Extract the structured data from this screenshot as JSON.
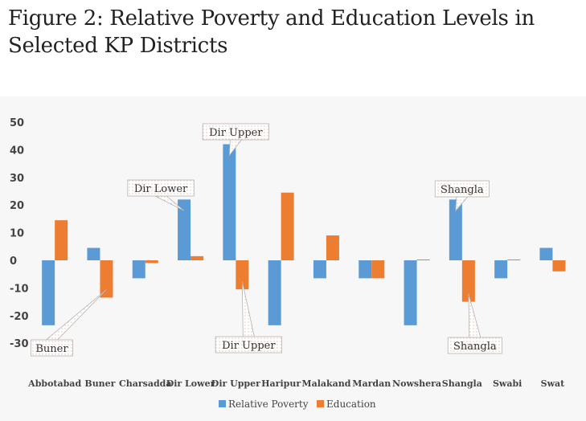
{
  "title": "Figure 2: Relative Poverty and Education Levels in Selected KP Districts",
  "colors": {
    "poverty": "#5b9bd5",
    "education": "#ed7d31",
    "background": "#f7f7f7"
  },
  "chart_data": {
    "type": "bar",
    "title": "",
    "xlabel": "",
    "ylabel": "",
    "ylim": [
      -30,
      50
    ],
    "yticks": [
      50,
      40,
      30,
      20,
      10,
      0,
      -10,
      -20,
      -30
    ],
    "grid": false,
    "legend_position": "bottom",
    "categories": [
      "Abbotabad",
      "Buner",
      "Charsadda",
      "Dir Lower",
      "Dir Upper",
      "Haripur",
      "Malakand",
      "Mardan",
      "Nowshera",
      "Shangla",
      "Swabi",
      "Swat"
    ],
    "series": [
      {
        "name": "Relative Poverty",
        "values": [
          -23.5,
          4.5,
          -6.5,
          22,
          42,
          -23.5,
          -6.5,
          -6.5,
          -23.5,
          22,
          -6.5,
          4.5
        ]
      },
      {
        "name": "Education",
        "values": [
          14.5,
          -13.5,
          -1,
          1.5,
          -10.5,
          24.5,
          9,
          -6.5,
          0.3,
          -15,
          0.3,
          -4
        ]
      }
    ],
    "annotations": [
      {
        "text": "Buner",
        "category": "Buner",
        "series": "Education"
      },
      {
        "text": "Dir Lower",
        "category": "Dir Lower",
        "series": "Relative Poverty"
      },
      {
        "text": "Dir Upper",
        "category": "Dir Upper",
        "series": "Relative Poverty"
      },
      {
        "text": "Dir Upper",
        "category": "Dir Upper",
        "series": "Education"
      },
      {
        "text": "Shangla",
        "category": "Shangla",
        "series": "Relative Poverty"
      },
      {
        "text": "Shangla",
        "category": "Shangla",
        "series": "Education"
      }
    ]
  }
}
